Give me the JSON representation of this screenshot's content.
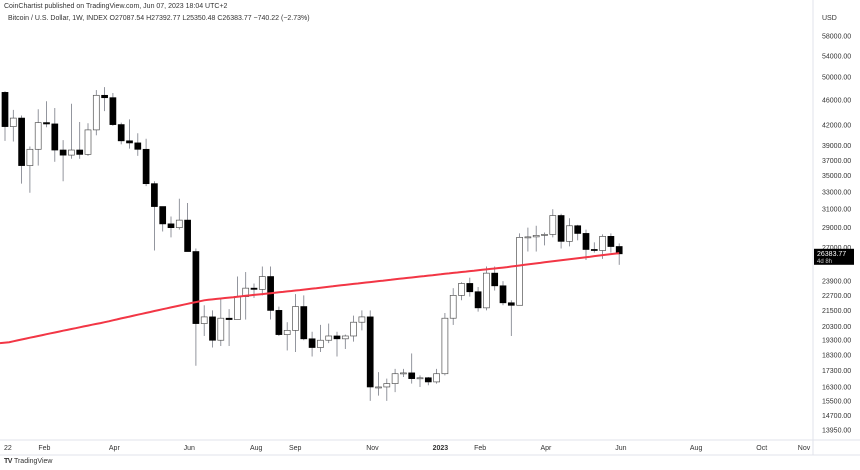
{
  "header": {
    "published": "CoinChartist published on TradingView.com, Jun 07, 2023 18:04 UTC+2",
    "legend": "Bitcoin / U.S. Dollar, 1W, INDEX  O27087.54  H27392.77  L25350.48  C26383.77  −740.22 (−2.73%)"
  },
  "footer": {
    "brand": "TradingView",
    "logo_text": "TV"
  },
  "colors": {
    "up": "#ffffff",
    "down": "#000000",
    "wick": "#787b86",
    "ma": "#f23645",
    "grid": "#e0e3eb"
  },
  "chart_data": {
    "type": "candlestick",
    "title": "Bitcoin / U.S. Dollar, 1W, INDEX",
    "scale": "log",
    "currency": "USD",
    "ylim": [
      13700,
      60000
    ],
    "y_ticks": [
      58000,
      54000,
      50000,
      46000,
      42000,
      39000,
      37000,
      35000,
      33000,
      31000,
      29000,
      27000,
      23900,
      22700,
      21500,
      20300,
      19300,
      18300,
      17300,
      16300,
      15500,
      14700,
      13950
    ],
    "y_tick_labels": [
      "58000.00",
      "54000.00",
      "50000.00",
      "46000.00",
      "42000.00",
      "39000.00",
      "37000.00",
      "35000.00",
      "33000.00",
      "31000.00",
      "29000.00",
      "27000.00",
      "23900.00",
      "22700.00",
      "21500.00",
      "20300.00",
      "19300.00",
      "18300.00",
      "17300.00",
      "16300.00",
      "15500.00",
      "14700.00",
      "13950.00"
    ],
    "x_ticks": [
      {
        "week": 0,
        "label": "22"
      },
      {
        "week": 4.5,
        "label": "Feb"
      },
      {
        "week": 13,
        "label": "Apr"
      },
      {
        "week": 22,
        "label": "Jun"
      },
      {
        "week": 30,
        "label": "Aug"
      },
      {
        "week": 34.7,
        "label": "Sep"
      },
      {
        "week": 44,
        "label": "Nov"
      },
      {
        "week": 52,
        "label": "2023"
      },
      {
        "week": 57,
        "label": "Feb"
      },
      {
        "week": 65,
        "label": "Apr"
      },
      {
        "week": 74,
        "label": "Jun"
      },
      {
        "week": 83,
        "label": "Aug"
      },
      {
        "week": 91,
        "label": "Oct"
      },
      {
        "week": 96,
        "label": "Nov"
      }
    ],
    "last_price": {
      "value": 26383.77,
      "label": "26383.77",
      "countdown": "4d 8h"
    },
    "ohlc": [
      [
        47300,
        47500,
        39700,
        41800
      ],
      [
        41800,
        44400,
        39600,
        43100
      ],
      [
        43100,
        43500,
        34000,
        36300
      ],
      [
        36300,
        38900,
        32900,
        38500
      ],
      [
        38500,
        44500,
        36300,
        42400
      ],
      [
        42400,
        45800,
        41700,
        42200
      ],
      [
        42200,
        44700,
        36800,
        38400
      ],
      [
        38400,
        39800,
        34300,
        37700
      ],
      [
        37700,
        45400,
        37200,
        38400
      ],
      [
        38400,
        42500,
        37200,
        37800
      ],
      [
        37800,
        42300,
        37600,
        41300
      ],
      [
        41300,
        47700,
        40500,
        46800
      ],
      [
        46800,
        48200,
        44200,
        46400
      ],
      [
        46400,
        47200,
        41900,
        42100
      ],
      [
        42100,
        42400,
        39200,
        39700
      ],
      [
        39700,
        42900,
        38600,
        39400
      ],
      [
        39400,
        40800,
        37600,
        38500
      ],
      [
        38500,
        40000,
        33700,
        34000
      ],
      [
        34000,
        34300,
        26700,
        31300
      ],
      [
        31300,
        31300,
        28600,
        29400
      ],
      [
        29400,
        30200,
        28000,
        29000
      ],
      [
        29000,
        32200,
        28800,
        29800
      ],
      [
        29800,
        31700,
        26600,
        26600
      ],
      [
        26600,
        26900,
        17600,
        20500
      ],
      [
        20500,
        21900,
        19600,
        21000
      ],
      [
        21000,
        21500,
        18800,
        19300
      ],
      [
        19300,
        22500,
        18900,
        20900
      ],
      [
        20900,
        21600,
        18900,
        20800
      ],
      [
        20800,
        24300,
        20800,
        22600
      ],
      [
        22600,
        24700,
        20800,
        23300
      ],
      [
        23300,
        23700,
        22500,
        23200
      ],
      [
        23200,
        25200,
        22700,
        24300
      ],
      [
        24300,
        25200,
        20800,
        21500
      ],
      [
        21500,
        21800,
        19600,
        19700
      ],
      [
        19700,
        20600,
        18600,
        20000
      ],
      [
        20000,
        22800,
        18500,
        21800
      ],
      [
        21800,
        22700,
        19300,
        19400
      ],
      [
        19400,
        19900,
        18200,
        18800
      ],
      [
        18800,
        20400,
        18500,
        19300
      ],
      [
        19300,
        20500,
        19100,
        19600
      ],
      [
        19600,
        19900,
        18200,
        19400
      ],
      [
        19400,
        19700,
        18700,
        19600
      ],
      [
        19600,
        21100,
        19200,
        20600
      ],
      [
        20600,
        21500,
        20000,
        21000
      ],
      [
        21000,
        21500,
        15500,
        16300
      ],
      [
        16300,
        17200,
        15800,
        16300
      ],
      [
        16300,
        16800,
        15500,
        16500
      ],
      [
        16500,
        17400,
        16000,
        17100
      ],
      [
        17100,
        17400,
        16900,
        17150
      ],
      [
        17150,
        18400,
        16500,
        16800
      ],
      [
        16800,
        17000,
        16300,
        16850
      ],
      [
        16850,
        16900,
        16400,
        16600
      ],
      [
        16600,
        17400,
        16500,
        17100
      ],
      [
        17100,
        21300,
        17000,
        20900
      ],
      [
        20900,
        23300,
        20400,
        22700
      ],
      [
        22700,
        23800,
        22300,
        23700
      ],
      [
        23700,
        24200,
        22600,
        23000
      ],
      [
        23000,
        23400,
        21400,
        21700
      ],
      [
        21700,
        25200,
        21500,
        24600
      ],
      [
        24600,
        25200,
        23100,
        23500
      ],
      [
        23500,
        23900,
        21900,
        22100
      ],
      [
        22100,
        22300,
        19600,
        21900
      ],
      [
        21900,
        28400,
        21900,
        28000
      ],
      [
        28000,
        29000,
        26600,
        28050
      ],
      [
        28050,
        29200,
        26600,
        28200
      ],
      [
        28200,
        28500,
        27200,
        28300
      ],
      [
        28300,
        31000,
        28000,
        30300
      ],
      [
        30300,
        30500,
        26900,
        27600
      ],
      [
        27600,
        30000,
        27100,
        29200
      ],
      [
        29200,
        29300,
        27700,
        28400
      ],
      [
        28400,
        28800,
        25800,
        26800
      ],
      [
        26800,
        27500,
        26500,
        26700
      ],
      [
        26700,
        28300,
        25900,
        28100
      ],
      [
        28100,
        28400,
        26500,
        27087.54
      ],
      [
        27087.54,
        27392.77,
        25350.48,
        26383.77
      ]
    ],
    "ma_series": {
      "name": "200W MA",
      "points": [
        [
          0,
          19100
        ],
        [
          12,
          20600
        ],
        [
          24,
          22300
        ],
        [
          35,
          23100
        ],
        [
          45,
          23900
        ],
        [
          60,
          25100
        ],
        [
          74,
          26450
        ]
      ]
    }
  }
}
